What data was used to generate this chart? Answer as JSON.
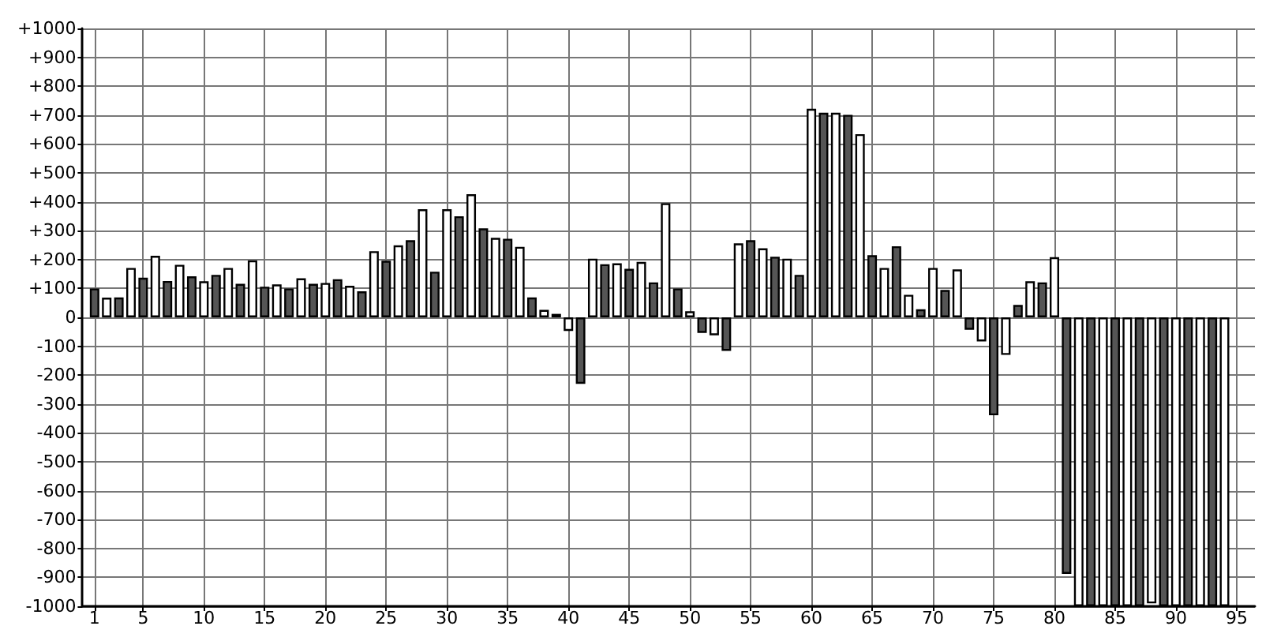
{
  "chart_data": {
    "type": "bar",
    "xlim": [
      0,
      96.5
    ],
    "ylim": [
      -1000,
      1000
    ],
    "grid": true,
    "xticks": [
      1,
      5,
      10,
      15,
      20,
      25,
      30,
      35,
      40,
      45,
      50,
      55,
      60,
      65,
      70,
      75,
      80,
      85,
      90,
      95
    ],
    "yticks": [
      {
        "value": -1000,
        "label": "-1000"
      },
      {
        "value": -900,
        "label": "-900"
      },
      {
        "value": -800,
        "label": "-800"
      },
      {
        "value": -700,
        "label": "-700"
      },
      {
        "value": -600,
        "label": "-600"
      },
      {
        "value": -500,
        "label": "-500"
      },
      {
        "value": -400,
        "label": "-400"
      },
      {
        "value": -300,
        "label": "-300"
      },
      {
        "value": -200,
        "label": "-200"
      },
      {
        "value": -100,
        "label": "-100"
      },
      0,
      {
        "value": 100,
        "label": "+100"
      },
      {
        "value": 200,
        "label": "+200"
      },
      {
        "value": 300,
        "label": "+300"
      },
      {
        "value": 400,
        "label": "+400"
      },
      {
        "value": 500,
        "label": "+500"
      },
      {
        "value": 600,
        "label": "+600"
      },
      {
        "value": 700,
        "label": "+700"
      },
      {
        "value": 800,
        "label": "+800"
      },
      {
        "value": 900,
        "label": "+900"
      },
      {
        "value": 1000,
        "label": "+1000"
      }
    ],
    "series": [
      {
        "color": "#555555",
        "x": [
          1,
          3,
          5,
          7,
          9,
          11,
          13,
          15,
          17,
          19,
          21,
          23,
          25,
          27,
          29,
          31,
          33,
          35,
          37,
          39,
          41,
          43,
          45,
          47,
          49,
          51,
          53,
          55,
          57,
          59,
          61,
          63,
          65,
          67,
          69,
          71,
          73,
          75,
          77,
          79,
          81,
          83,
          85,
          87,
          89,
          91,
          93
        ],
        "values": [
          100,
          69,
          137,
          126,
          142,
          147,
          116,
          106,
          100,
          116,
          132,
          90,
          196,
          267,
          158,
          350,
          308,
          272,
          69,
          12,
          -230,
          184,
          168,
          121,
          100,
          -54,
          -116,
          267,
          210,
          147,
          708,
          701,
          215,
          246,
          28,
          95,
          -43,
          -339,
          43,
          121,
          -888,
          -1000,
          -1000,
          -1000,
          -1000,
          -1000,
          -1000
        ]
      },
      {
        "color": "#ffffff",
        "x": [
          2,
          4,
          6,
          8,
          10,
          12,
          14,
          16,
          18,
          20,
          22,
          24,
          26,
          28,
          30,
          32,
          34,
          36,
          38,
          40,
          42,
          44,
          46,
          48,
          50,
          52,
          54,
          56,
          58,
          60,
          62,
          64,
          66,
          68,
          70,
          72,
          74,
          76,
          78,
          80,
          82,
          84,
          86,
          88,
          90,
          92,
          94
        ],
        "values": [
          68,
          171,
          213,
          182,
          125,
          171,
          197,
          114,
          135,
          119,
          109,
          229,
          249,
          374,
          374,
          426,
          275,
          244,
          26,
          -47,
          203,
          187,
          192,
          395,
          21,
          -62,
          256,
          239,
          203,
          722,
          708,
          634,
          171,
          78,
          171,
          166,
          -83,
          -130,
          125,
          208,
          -1000,
          -1000,
          -1000,
          -990,
          -1000,
          -1000,
          -1000
        ]
      }
    ]
  }
}
